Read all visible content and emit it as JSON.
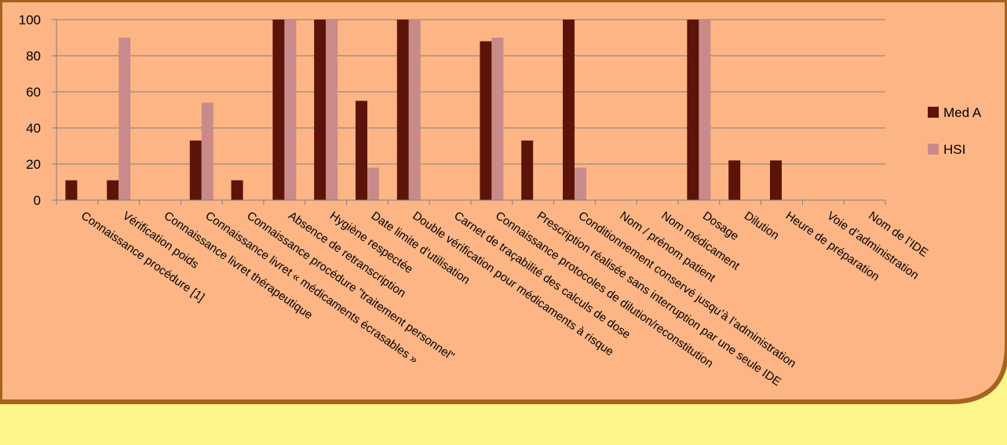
{
  "chart_data": {
    "type": "bar",
    "categories": [
      "Connaissance procédure [1]",
      "Vérification poids",
      "Connaissance livret thérapeutique",
      "Connaissance livret « médicaments écrasables »",
      "Connaissance procédure \"traitement personnel\"",
      "Absence de retranscription",
      "Hygiène respectée",
      "Date limite d’utilisation",
      "Double vérification pour médicaments à risque",
      "Carnet de traçabilité des calculs de dose",
      "Connaissance protocoles de dilution/reconstitution",
      "Prescription réalisée sans interruption par une seule IDE",
      "Conditionnement conservé jusqu’à l’administration",
      "Nom / prénom patient",
      "Nom médicament",
      "Dosage",
      "Dilution",
      "Heure de préparation",
      "Voie d’administration",
      "Nom de l’IDE"
    ],
    "series": [
      {
        "name": "Med A",
        "color": "#5c1409",
        "values": [
          11,
          11,
          0,
          33,
          11,
          100,
          100,
          55,
          100,
          0,
          88,
          33,
          100,
          0,
          0,
          100,
          22,
          22,
          0,
          0
        ]
      },
      {
        "name": "HSI",
        "color": "#c98b8a",
        "values": [
          0,
          90,
          0,
          54,
          0,
          100,
          100,
          18,
          100,
          0,
          90,
          0,
          18,
          0,
          0,
          100,
          0,
          0,
          0,
          0
        ]
      }
    ],
    "ylim": [
      0,
      100
    ],
    "yticks": [
      0,
      20,
      40,
      60,
      80,
      100
    ],
    "grid": true,
    "legend": "right",
    "colors": {
      "background": "#feb585",
      "grid": "#7f7f7f",
      "page": "#fdf58a"
    }
  }
}
